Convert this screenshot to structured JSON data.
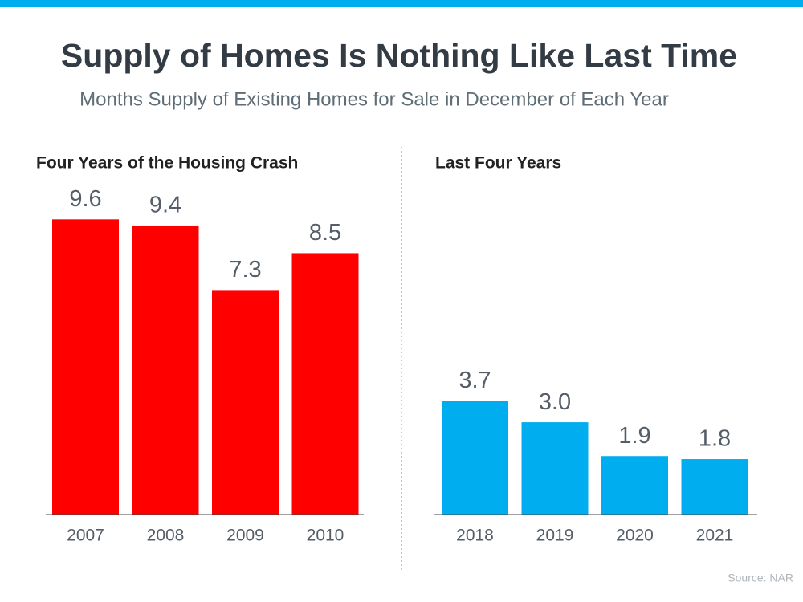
{
  "title": "Supply of Homes Is Nothing Like Last Time",
  "subtitle": "Months Supply of Existing Homes for Sale in December of Each Year",
  "source": "Source: NAR",
  "chart_data": [
    {
      "type": "bar",
      "title": "Four Years of the Housing Crash",
      "categories": [
        "2007",
        "2008",
        "2009",
        "2010"
      ],
      "values": [
        9.6,
        9.4,
        7.3,
        8.5
      ],
      "color": "#ff0000"
    },
    {
      "type": "bar",
      "title": "Last Four Years",
      "categories": [
        "2018",
        "2019",
        "2020",
        "2021"
      ],
      "values": [
        3.7,
        3.0,
        1.9,
        1.8
      ],
      "value_labels": [
        "3.7",
        "3.0",
        "1.9",
        "1.8"
      ],
      "color": "#00aeef"
    }
  ]
}
